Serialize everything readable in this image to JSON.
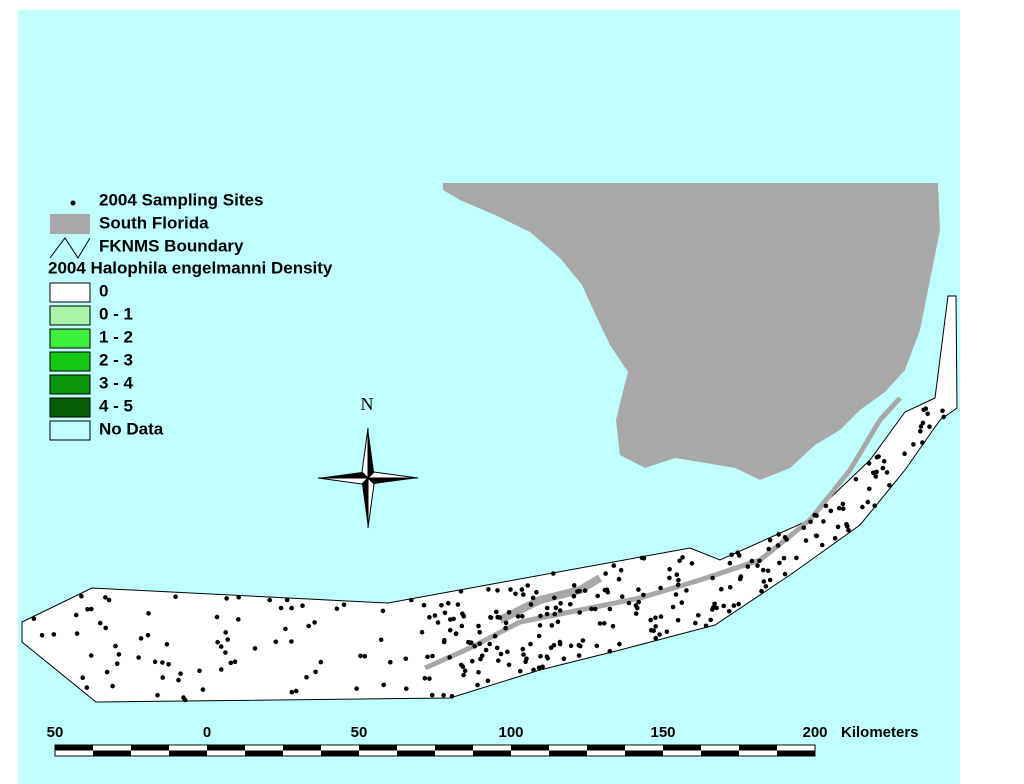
{
  "legend": {
    "sites": "2004 Sampling Sites",
    "land": "South Florida",
    "boundary": "FKNMS Boundary",
    "heading": "2004 Halophila engelmanni Density",
    "classes": [
      {
        "label": "0",
        "color": "#ffffff"
      },
      {
        "label": "0 - 1",
        "color": "#a8f5a8"
      },
      {
        "label": "1 - 2",
        "color": "#3cf03c"
      },
      {
        "label": "2 - 3",
        "color": "#14c814"
      },
      {
        "label": "3 - 4",
        "color": "#0a960a"
      },
      {
        "label": "4 - 5",
        "color": "#055f05"
      },
      {
        "label": "No Data",
        "color": "#c0ffff"
      }
    ]
  },
  "north": "N",
  "scale": {
    "ticks": [
      {
        "value": -50,
        "label": "50"
      },
      0,
      50,
      100,
      150,
      200
    ],
    "unit": "Kilometers"
  }
}
